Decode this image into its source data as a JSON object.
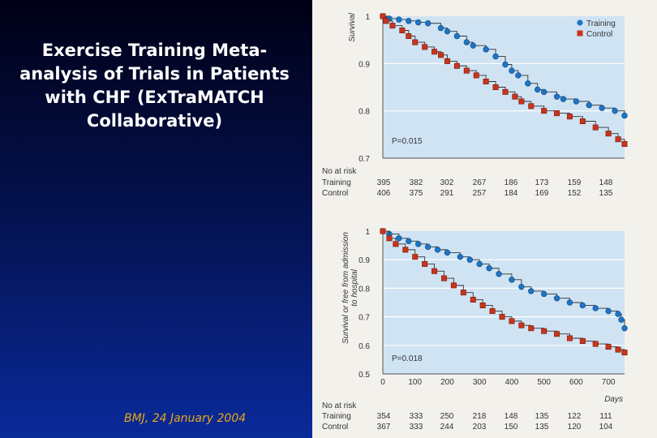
{
  "slide": {
    "title": "Exercise Training Meta-analysis of Trials in Patients with CHF (ExTraMATCH Collaborative)",
    "citation": "BMJ, 24 January 2004"
  },
  "colors": {
    "background_top": "#000016",
    "background_bottom": "#0a2a9a",
    "title": "#ffffff",
    "citation": "#e8a817",
    "plot_fill": "#cfe3f3",
    "training": "#1f74c4",
    "control": "#c8341c"
  },
  "chart_data": [
    {
      "type": "line",
      "ylabel": "Survival",
      "xlabel": "",
      "ylim": [
        0.7,
        1.0
      ],
      "xlim": [
        0,
        750
      ],
      "y_ticks": [
        "1",
        "0.9",
        "0.8",
        "0.7"
      ],
      "y_tick_values": [
        1.0,
        0.9,
        0.8,
        0.7
      ],
      "x_tick_labels_shown": false,
      "grid": true,
      "legend": "top-right",
      "annotation": "P=0.015",
      "series": [
        {
          "name": "Training",
          "color": "#1f74c4",
          "marker": "circle",
          "points": [
            [
              0,
              1.0
            ],
            [
              20,
              0.995
            ],
            [
              50,
              0.993
            ],
            [
              80,
              0.99
            ],
            [
              110,
              0.987
            ],
            [
              140,
              0.985
            ],
            [
              180,
              0.975
            ],
            [
              200,
              0.968
            ],
            [
              230,
              0.958
            ],
            [
              260,
              0.945
            ],
            [
              280,
              0.938
            ],
            [
              320,
              0.93
            ],
            [
              350,
              0.915
            ],
            [
              380,
              0.898
            ],
            [
              400,
              0.885
            ],
            [
              420,
              0.875
            ],
            [
              450,
              0.858
            ],
            [
              480,
              0.845
            ],
            [
              500,
              0.84
            ],
            [
              540,
              0.83
            ],
            [
              560,
              0.825
            ],
            [
              600,
              0.82
            ],
            [
              640,
              0.812
            ],
            [
              680,
              0.806
            ],
            [
              720,
              0.8
            ],
            [
              750,
              0.79
            ]
          ]
        },
        {
          "name": "Control",
          "color": "#c8341c",
          "marker": "square",
          "points": [
            [
              0,
              1.0
            ],
            [
              10,
              0.99
            ],
            [
              30,
              0.98
            ],
            [
              60,
              0.97
            ],
            [
              80,
              0.958
            ],
            [
              100,
              0.945
            ],
            [
              130,
              0.935
            ],
            [
              160,
              0.925
            ],
            [
              180,
              0.918
            ],
            [
              200,
              0.905
            ],
            [
              230,
              0.895
            ],
            [
              260,
              0.885
            ],
            [
              290,
              0.875
            ],
            [
              320,
              0.862
            ],
            [
              350,
              0.85
            ],
            [
              380,
              0.84
            ],
            [
              410,
              0.83
            ],
            [
              430,
              0.82
            ],
            [
              460,
              0.81
            ],
            [
              500,
              0.8
            ],
            [
              540,
              0.795
            ],
            [
              580,
              0.788
            ],
            [
              620,
              0.778
            ],
            [
              660,
              0.765
            ],
            [
              700,
              0.752
            ],
            [
              730,
              0.74
            ],
            [
              750,
              0.73
            ]
          ]
        }
      ],
      "at_risk": {
        "header": "No at risk",
        "training_label": "Training",
        "control_label": "Control",
        "training": [
          "395",
          "382",
          "302",
          "267",
          "186",
          "173",
          "159",
          "148"
        ],
        "control": [
          "406",
          "375",
          "291",
          "257",
          "184",
          "169",
          "152",
          "135"
        ]
      }
    },
    {
      "type": "line",
      "ylabel": "Survival or free from admission to hospital",
      "xlabel": "Days",
      "ylim": [
        0.5,
        1.0
      ],
      "xlim": [
        0,
        750
      ],
      "y_ticks": [
        "1",
        "0.9",
        "0.8",
        "0.7",
        "0.6",
        "0.5"
      ],
      "y_tick_values": [
        1.0,
        0.9,
        0.8,
        0.7,
        0.6,
        0.5
      ],
      "x_ticks": [
        "0",
        "100",
        "200",
        "300",
        "400",
        "500",
        "600",
        "700"
      ],
      "x_tick_values": [
        0,
        100,
        200,
        300,
        400,
        500,
        600,
        700
      ],
      "grid": true,
      "annotation": "P=0.018",
      "series": [
        {
          "name": "Training",
          "color": "#1f74c4",
          "marker": "circle",
          "points": [
            [
              0,
              1.0
            ],
            [
              20,
              0.99
            ],
            [
              50,
              0.975
            ],
            [
              80,
              0.965
            ],
            [
              110,
              0.955
            ],
            [
              140,
              0.945
            ],
            [
              170,
              0.935
            ],
            [
              200,
              0.925
            ],
            [
              240,
              0.91
            ],
            [
              270,
              0.9
            ],
            [
              300,
              0.885
            ],
            [
              330,
              0.87
            ],
            [
              360,
              0.85
            ],
            [
              400,
              0.83
            ],
            [
              430,
              0.805
            ],
            [
              460,
              0.79
            ],
            [
              500,
              0.78
            ],
            [
              540,
              0.765
            ],
            [
              580,
              0.75
            ],
            [
              620,
              0.74
            ],
            [
              660,
              0.73
            ],
            [
              700,
              0.72
            ],
            [
              730,
              0.71
            ],
            [
              740,
              0.69
            ],
            [
              750,
              0.66
            ]
          ]
        },
        {
          "name": "Control",
          "color": "#c8341c",
          "marker": "square",
          "points": [
            [
              0,
              1.0
            ],
            [
              20,
              0.975
            ],
            [
              40,
              0.955
            ],
            [
              70,
              0.935
            ],
            [
              100,
              0.91
            ],
            [
              130,
              0.885
            ],
            [
              160,
              0.86
            ],
            [
              190,
              0.835
            ],
            [
              220,
              0.81
            ],
            [
              250,
              0.785
            ],
            [
              280,
              0.76
            ],
            [
              310,
              0.74
            ],
            [
              340,
              0.72
            ],
            [
              370,
              0.7
            ],
            [
              400,
              0.685
            ],
            [
              430,
              0.67
            ],
            [
              460,
              0.66
            ],
            [
              500,
              0.65
            ],
            [
              540,
              0.64
            ],
            [
              580,
              0.625
            ],
            [
              620,
              0.615
            ],
            [
              660,
              0.605
            ],
            [
              700,
              0.595
            ],
            [
              730,
              0.585
            ],
            [
              750,
              0.575
            ]
          ]
        }
      ],
      "at_risk": {
        "header": "No at risk",
        "training_label": "Training",
        "control_label": "Control",
        "training": [
          "354",
          "333",
          "250",
          "218",
          "148",
          "135",
          "122",
          "111"
        ],
        "control": [
          "367",
          "333",
          "244",
          "203",
          "150",
          "135",
          "120",
          "104"
        ]
      }
    }
  ]
}
